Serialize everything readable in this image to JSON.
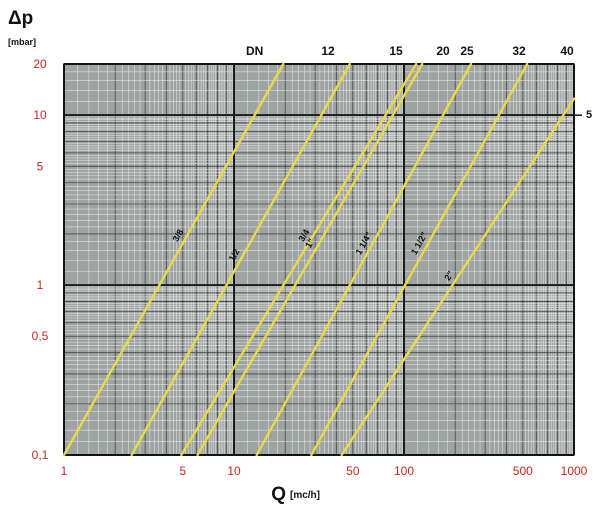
{
  "chart_data": {
    "type": "line",
    "ylabel": "Δp",
    "yunit": "[mbar]",
    "xlabel": "Q",
    "xunit": "[mc/h]",
    "xscale": "log",
    "yscale": "log",
    "xlim": [
      1,
      1000
    ],
    "ylim": [
      0.1,
      20
    ],
    "grid": true,
    "y_ticks": [
      {
        "value": 20,
        "label": "20"
      },
      {
        "value": 10,
        "label": "10"
      },
      {
        "value": 5,
        "label": "5"
      },
      {
        "value": 1,
        "label": "1"
      },
      {
        "value": 0.5,
        "label": "0,5"
      },
      {
        "value": 0.1,
        "label": "0,1"
      }
    ],
    "x_ticks": [
      {
        "value": 1,
        "label": "1"
      },
      {
        "value": 5,
        "label": "5"
      },
      {
        "value": 10,
        "label": "10"
      },
      {
        "value": 50,
        "label": "50"
      },
      {
        "value": 100,
        "label": "100"
      },
      {
        "value": 500,
        "label": "500"
      },
      {
        "value": 1000,
        "label": "1000"
      }
    ],
    "dn_label": "DN",
    "dn_ticks": [
      "12",
      "15",
      "20",
      "25",
      "32",
      "40"
    ],
    "right_edge_label": "5",
    "series": [
      {
        "name": "3/8",
        "points": [
          [
            1,
            0.1
          ],
          [
            19.5,
            20
          ]
        ]
      },
      {
        "name": "1/2",
        "points": [
          [
            2.5,
            0.1
          ],
          [
            48,
            20
          ]
        ]
      },
      {
        "name": "3/4",
        "points": [
          [
            4.9,
            0.1
          ],
          [
            118,
            20
          ]
        ]
      },
      {
        "name": "1\"",
        "points": [
          [
            6.1,
            0.1
          ],
          [
            128,
            20
          ]
        ]
      },
      {
        "name": "1 1/4\"",
        "points": [
          [
            13.6,
            0.1
          ],
          [
            248,
            20
          ]
        ]
      },
      {
        "name": "1 1/2\"",
        "points": [
          [
            28.5,
            0.1
          ],
          [
            530,
            20
          ]
        ]
      },
      {
        "name": "2\"",
        "points": [
          [
            43,
            0.1
          ],
          [
            1000,
            12.5
          ]
        ]
      }
    ],
    "colors": {
      "background": "#9ea4a2",
      "major_grid": "#1b1b1b",
      "minor_grid": "#f2f2f2",
      "series": "#e8d84a",
      "tick_labels": "#c8281e"
    }
  }
}
